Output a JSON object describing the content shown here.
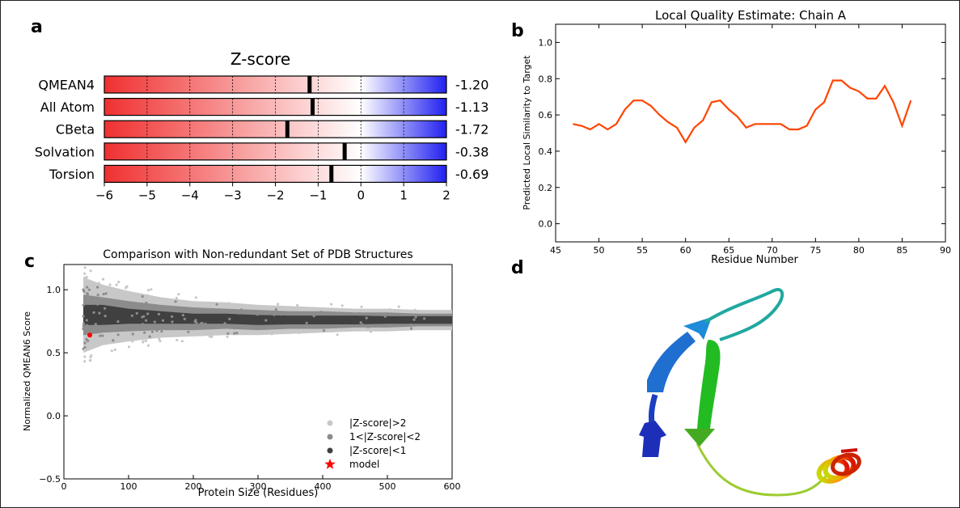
{
  "panel_letters": [
    "a",
    "b",
    "c",
    "d"
  ],
  "chart_data": [
    {
      "type": "bar",
      "title": "Z-score",
      "categories": [
        "QMEAN4",
        "All Atom",
        "CBeta",
        "Solvation",
        "Torsion"
      ],
      "values": [
        -1.2,
        -1.13,
        -1.72,
        -0.38,
        -0.69
      ],
      "value_labels": [
        "-1.20",
        "-1.13",
        "-1.72",
        "-0.38",
        "-0.69"
      ],
      "xlim": [
        -6,
        2
      ],
      "xticks": [
        "−6",
        "−5",
        "−4",
        "−3",
        "−2",
        "−1",
        "0",
        "1",
        "2"
      ],
      "gradient": {
        "low": "#f03030",
        "mid": "#ffffff",
        "high": "#2020f0"
      }
    },
    {
      "type": "line",
      "title": "Local Quality Estimate: Chain A",
      "xlabel": "Residue Number",
      "ylabel": "Predicted Local Similarity to Target",
      "xlim": [
        45,
        90
      ],
      "ylim": [
        -0.1,
        1.1
      ],
      "xticks": [
        "45",
        "50",
        "55",
        "60",
        "65",
        "70",
        "75",
        "80",
        "85",
        "90"
      ],
      "yticks": [
        "0.0",
        "0.2",
        "0.4",
        "0.6",
        "0.8",
        "1.0"
      ],
      "color": "#ff4500",
      "series": [
        {
          "x": [
            47,
            48,
            49,
            50,
            51,
            52,
            53,
            54,
            55,
            56,
            57,
            58,
            59,
            60,
            61,
            62,
            63,
            64,
            65,
            66,
            67,
            68,
            69,
            70,
            71,
            72,
            73,
            74,
            75,
            76,
            77,
            78,
            79,
            80,
            81,
            82,
            83,
            84,
            85,
            86
          ],
          "y": [
            0.55,
            0.54,
            0.52,
            0.55,
            0.52,
            0.55,
            0.63,
            0.68,
            0.68,
            0.65,
            0.6,
            0.56,
            0.53,
            0.45,
            0.53,
            0.57,
            0.67,
            0.68,
            0.63,
            0.59,
            0.53,
            0.55,
            0.55,
            0.55,
            0.55,
            0.52,
            0.52,
            0.54,
            0.63,
            0.67,
            0.79,
            0.79,
            0.75,
            0.73,
            0.69,
            0.69,
            0.76,
            0.67,
            0.54,
            0.68
          ]
        }
      ]
    },
    {
      "type": "scatter",
      "title": "Comparison with Non-redundant Set of PDB Structures",
      "xlabel": "Protein Size (Residues)",
      "ylabel": "Normalized QMEAN6 Score",
      "xlim": [
        0,
        600
      ],
      "ylim": [
        -0.5,
        1.2
      ],
      "xticks": [
        "0",
        "100",
        "200",
        "300",
        "400",
        "500",
        "600"
      ],
      "yticks": [
        "−0.5",
        "0.0",
        "0.5",
        "1.0"
      ],
      "band": {
        "x": [
          30,
          60,
          100,
          150,
          200,
          250,
          300,
          350,
          400,
          450,
          500,
          550,
          600
        ],
        "center": [
          0.8,
          0.8,
          0.79,
          0.78,
          0.77,
          0.77,
          0.76,
          0.76,
          0.76,
          0.76,
          0.76,
          0.76,
          0.76
        ],
        "core_halfwidth": [
          0.08,
          0.08,
          0.06,
          0.05,
          0.04,
          0.04,
          0.04,
          0.035,
          0.035,
          0.035,
          0.03,
          0.03,
          0.03
        ],
        "mid_halfwidth": [
          0.16,
          0.14,
          0.12,
          0.1,
          0.09,
          0.08,
          0.08,
          0.07,
          0.07,
          0.06,
          0.06,
          0.05,
          0.05
        ],
        "outer_halfwidth": [
          0.3,
          0.24,
          0.2,
          0.16,
          0.14,
          0.13,
          0.12,
          0.11,
          0.1,
          0.09,
          0.09,
          0.08,
          0.08
        ]
      },
      "model": {
        "x": 40,
        "y": 0.64
      },
      "legend_position": "lower-right",
      "legend": [
        {
          "label": "|Z-score|>2",
          "color": "#c8c8c8",
          "marker": "dot"
        },
        {
          "label": "1<|Z-score|<2",
          "color": "#8c8c8c",
          "marker": "dot"
        },
        {
          "label": "|Z-score|<1",
          "color": "#404040",
          "marker": "dot"
        },
        {
          "label": "model",
          "color": "#ff0000",
          "marker": "star"
        }
      ]
    }
  ]
}
